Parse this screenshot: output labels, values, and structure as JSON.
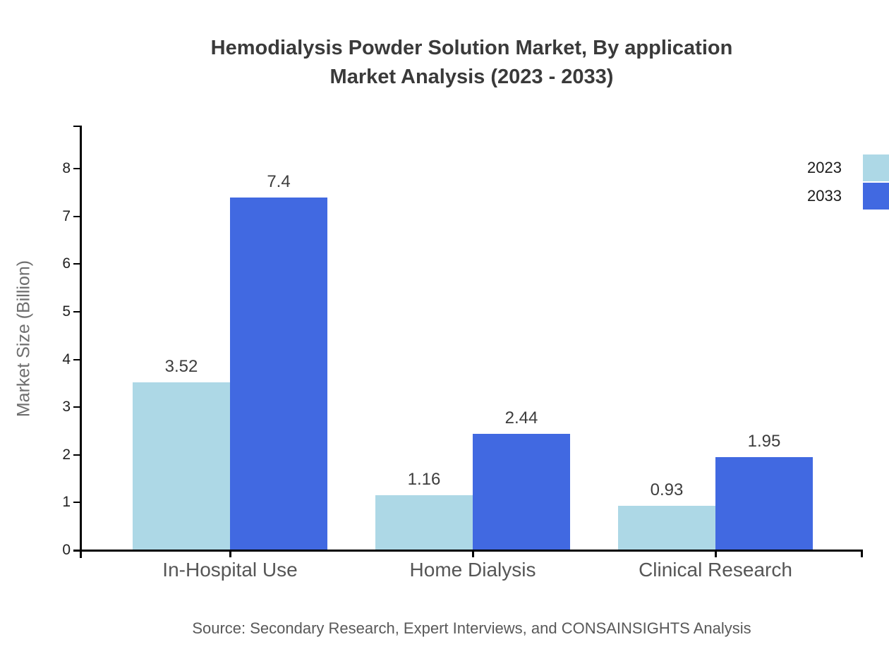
{
  "title": {
    "line1": "Hemodialysis Powder Solution Market, By application",
    "line2": "Market Analysis (2023 - 2033)"
  },
  "source": "Source: Secondary Research, Expert Interviews, and CONSAINSIGHTS Analysis",
  "chart_data": {
    "type": "bar",
    "categories": [
      "In-Hospital Use",
      "Home Dialysis",
      "Clinical Research"
    ],
    "series": [
      {
        "name": "2023",
        "color": "#ADD8E6",
        "values": [
          3.52,
          1.16,
          0.93
        ],
        "labels": [
          "3.52",
          "1.16",
          "0.93"
        ]
      },
      {
        "name": "2033",
        "color": "#4169E1",
        "values": [
          7.4,
          2.44,
          1.95
        ],
        "labels": [
          "7.4",
          "2.44",
          "1.95"
        ]
      }
    ],
    "ylabel": "Market Size (Billion)",
    "xlabel": "",
    "ylim": [
      0,
      8
    ],
    "yticks": [
      0,
      1,
      2,
      3,
      4,
      5,
      6,
      7,
      8
    ],
    "grid": false,
    "legend_position": "top-right",
    "axis_color": "#000000"
  }
}
